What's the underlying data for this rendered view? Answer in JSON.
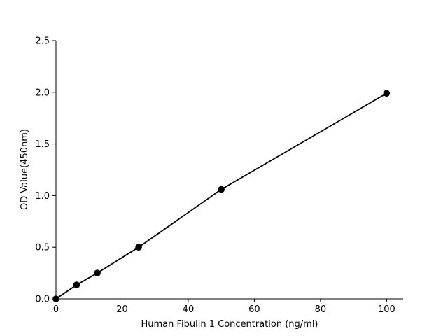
{
  "chart_data": {
    "type": "line",
    "title": "",
    "xlabel": "Human Fibulin 1 Concentration (ng/ml)",
    "ylabel": "OD Value(450nm)",
    "xlim": [
      0,
      105
    ],
    "ylim": [
      0,
      2.5
    ],
    "xticks": [
      0,
      20,
      40,
      60,
      80,
      100
    ],
    "yticks": [
      0.0,
      0.5,
      1.0,
      1.5,
      2.0,
      2.5
    ],
    "xtick_labels": [
      "0",
      "20",
      "40",
      "60",
      "80",
      "100"
    ],
    "ytick_labels": [
      "0.0",
      "0.5",
      "1.0",
      "1.5",
      "2.0",
      "2.5"
    ],
    "grid": false,
    "series": [
      {
        "x": [
          0,
          6.25,
          12.5,
          25,
          50,
          100
        ],
        "y": [
          0.0,
          0.135,
          0.25,
          0.5,
          1.06,
          1.99
        ],
        "color": "#000000",
        "marker": "circle"
      }
    ]
  }
}
